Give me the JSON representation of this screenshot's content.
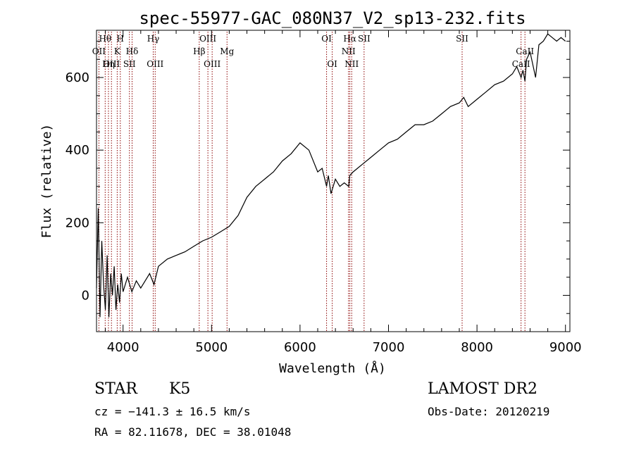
{
  "chart_data": {
    "type": "line",
    "title": "spec-55977-GAC_080N37_V2_sp13-232.fits",
    "xlabel": "Wavelength (Å)",
    "ylabel": "Flux (relative)",
    "xlim": [
      3700,
      9050
    ],
    "ylim": [
      -100,
      730
    ],
    "xticks": [
      4000,
      5000,
      6000,
      7000,
      8000,
      9000
    ],
    "yticks": [
      0,
      200,
      400,
      600
    ],
    "grid": false,
    "series": [
      {
        "x": [
          3700,
          3720,
          3740,
          3760,
          3780,
          3800,
          3820,
          3840,
          3860,
          3880,
          3900,
          3920,
          3940,
          3960,
          3980,
          4000,
          4050,
          4100,
          4150,
          4200,
          4250,
          4300,
          4350,
          4400,
          4500,
          4600,
          4700,
          4800,
          4900,
          5000,
          5100,
          5200,
          5300,
          5400,
          5500,
          5600,
          5700,
          5800,
          5900,
          6000,
          6100,
          6200,
          6250,
          6300,
          6320,
          6350,
          6400,
          6450,
          6500,
          6550,
          6562,
          6600,
          6650,
          6700,
          6800,
          6900,
          7000,
          7100,
          7200,
          7300,
          7400,
          7500,
          7600,
          7700,
          7800,
          7850,
          7900,
          8000,
          8100,
          8200,
          8300,
          8400,
          8450,
          8498,
          8520,
          8542,
          8560,
          8600,
          8662,
          8700,
          8750,
          8800,
          8850,
          8900,
          8950,
          9000
        ],
        "y": [
          20,
          240,
          -60,
          150,
          30,
          -40,
          110,
          -60,
          60,
          0,
          80,
          -40,
          30,
          -20,
          60,
          10,
          50,
          10,
          40,
          20,
          40,
          60,
          30,
          80,
          100,
          110,
          120,
          135,
          150,
          160,
          175,
          190,
          220,
          270,
          300,
          320,
          340,
          370,
          390,
          420,
          400,
          340,
          350,
          300,
          330,
          280,
          320,
          300,
          310,
          300,
          330,
          340,
          350,
          360,
          380,
          400,
          420,
          430,
          450,
          470,
          470,
          480,
          500,
          520,
          530,
          545,
          520,
          540,
          560,
          580,
          590,
          610,
          630,
          600,
          620,
          590,
          650,
          670,
          600,
          690,
          700,
          720,
          710,
          700,
          710,
          700
        ]
      }
    ],
    "spectral_lines": [
      {
        "label": "Hθ",
        "x": 3798,
        "row": 1
      },
      {
        "label": "OII",
        "x": 3727,
        "row": 2
      },
      {
        "label": "OIII",
        "x": 3869,
        "row": 3
      },
      {
        "label": "H",
        "x": 3969,
        "row": 1
      },
      {
        "label": "K",
        "x": 3934,
        "row": 2
      },
      {
        "label": "Hη",
        "x": 3835,
        "row": 3
      },
      {
        "label": "Hδ",
        "x": 4102,
        "row": 2
      },
      {
        "label": "SII",
        "x": 4072,
        "row": 3
      },
      {
        "label": "Hγ",
        "x": 4341,
        "row": 1
      },
      {
        "label": "OIII",
        "x": 4363,
        "row": 3
      },
      {
        "label": "OIII",
        "x": 4959,
        "row": 1
      },
      {
        "label": "Hβ",
        "x": 4861,
        "row": 2
      },
      {
        "label": "OIII",
        "x": 5007,
        "row": 3
      },
      {
        "label": "Mg",
        "x": 5175,
        "row": 2
      },
      {
        "label": "OI",
        "x": 6300,
        "row": 1
      },
      {
        "label": "OI",
        "x": 6364,
        "row": 3
      },
      {
        "label": "Hα",
        "x": 6563,
        "row": 1
      },
      {
        "label": "SII",
        "x": 6724,
        "row": 1
      },
      {
        "label": "NII",
        "x": 6548,
        "row": 2
      },
      {
        "label": "NII",
        "x": 6584,
        "row": 3
      },
      {
        "label": "SII",
        "x": 7832,
        "row": 1
      },
      {
        "label": "CaII",
        "x": 8542,
        "row": 2
      },
      {
        "label": "CaII",
        "x": 8498,
        "row": 3
      }
    ]
  },
  "info": {
    "object_class": "STAR",
    "subclass": "K5",
    "survey": "LAMOST DR2",
    "velocity": "cz = −141.3 ± 16.5 km/s",
    "obs_date": "Obs-Date: 20120219",
    "coords": "RA =  82.11678, DEC =  38.01048"
  },
  "colors": {
    "spectrum": "#000000",
    "line_markers": "#8b0000"
  }
}
